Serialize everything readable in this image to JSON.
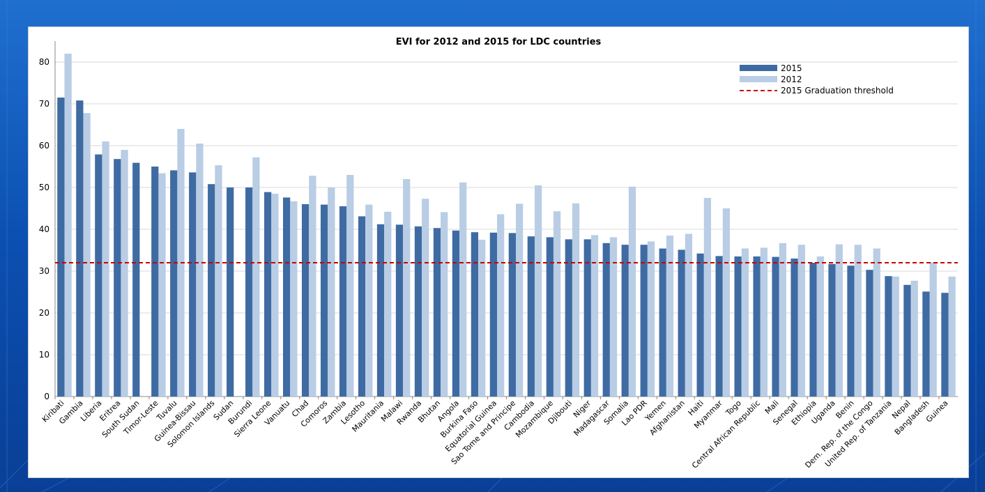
{
  "chart_data": {
    "type": "bar",
    "title": "EVI for 2012 and 2015 for LDC countries",
    "xlabel": "",
    "ylabel": "",
    "ylim": [
      0,
      85
    ],
    "yticks": [
      0,
      10,
      20,
      30,
      40,
      50,
      60,
      70,
      80
    ],
    "grid": true,
    "legend_position": "top-right",
    "categories": [
      "Kiribati",
      "Gambia",
      "Liberia",
      "Eritrea",
      "South Sudan",
      "Timor-Leste",
      "Tuvalu",
      "Guinea-Bissau",
      "Solomon Islands",
      "Sudan",
      "Burundi",
      "Sierra Leone",
      "Vanuatu",
      "Chad",
      "Comoros",
      "Zambia",
      "Lesotho",
      "Mauritania",
      "Malawi",
      "Rwanda",
      "Bhutan",
      "Angola",
      "Burkina Faso",
      "Equatorial Guinea",
      "Sao Tome and Principe",
      "Cambodia",
      "Mozambique",
      "Djibouti",
      "Niger",
      "Madagascar",
      "Somalia",
      "Lao PDR",
      "Yemen",
      "Afghanistan",
      "Haiti",
      "Myanmar",
      "Togo",
      "Central African Republic",
      "Mali",
      "Senegal",
      "Ethiopia",
      "Uganda",
      "Benin",
      "Dem. Rep. of the Congo",
      "United Rep. of Tanzania",
      "Nepal",
      "Bangladesh",
      "Guinea"
    ],
    "series": [
      {
        "name": "2015",
        "color": "#3f6ba3",
        "values": [
          71.5,
          70.8,
          57.9,
          56.8,
          55.9,
          55.0,
          54.1,
          53.6,
          50.8,
          50.0,
          50.0,
          48.9,
          47.6,
          46.0,
          45.9,
          45.5,
          43.1,
          41.2,
          41.1,
          40.7,
          40.3,
          39.7,
          39.3,
          39.2,
          39.1,
          38.3,
          38.1,
          37.6,
          37.6,
          36.7,
          36.3,
          36.3,
          35.4,
          35.1,
          34.2,
          33.6,
          33.5,
          33.5,
          33.4,
          33.0,
          32.0,
          31.7,
          31.3,
          30.3,
          28.8,
          26.7,
          25.1,
          24.8
        ]
      },
      {
        "name": "2012",
        "color": "#b9cde5",
        "values": [
          82.0,
          67.8,
          61.0,
          59.0,
          null,
          53.4,
          64.0,
          60.5,
          55.3,
          null,
          57.2,
          48.5,
          46.7,
          52.8,
          50.0,
          53.0,
          45.9,
          44.2,
          52.0,
          47.3,
          44.1,
          51.2,
          37.5,
          43.6,
          46.1,
          50.5,
          44.3,
          46.2,
          38.6,
          38.1,
          50.2,
          37.1,
          38.5,
          38.9,
          47.5,
          45.0,
          35.4,
          35.6,
          36.7,
          36.3,
          33.5,
          36.4,
          36.3,
          35.4,
          28.7,
          27.7,
          32.1,
          28.7
        ]
      }
    ],
    "threshold": {
      "name": "2015 Graduation threshold",
      "value": 32,
      "color": "#cc0000",
      "style": "dashed"
    }
  }
}
